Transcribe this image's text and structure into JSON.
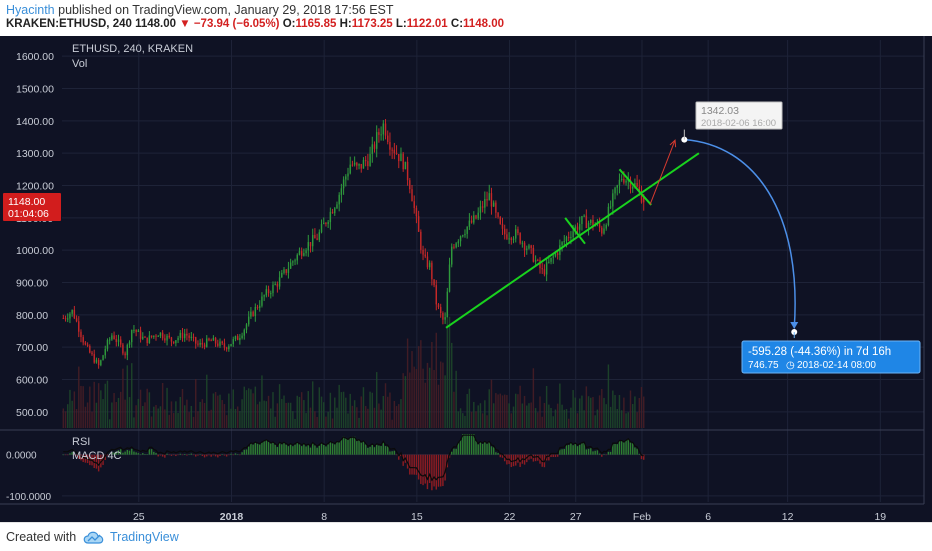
{
  "header": {
    "author": "Hyacinth",
    "published_text": "published on TradingView.com, January 29, 2018 17:56 EST",
    "symbol": "KRAKEN:ETHUSD, 240",
    "last": "1148.00",
    "change": "−73.94 (−6.05%)",
    "o_label": "O:",
    "o_val": "1165.85",
    "h_label": "H:",
    "h_val": "1173.25",
    "l_label": "L:",
    "l_val": "1122.01",
    "c_label": "C:",
    "c_val": "1148.00"
  },
  "legend": {
    "main": "ETHUSD, 240, KRAKEN",
    "vol": "Vol",
    "rsi": "RSI",
    "macd": "MACD 4C"
  },
  "price_tag": {
    "price": "1148.00",
    "countdown": "01:04:06"
  },
  "annotations": {
    "target_label": {
      "value": "1342.03",
      "date": "2018-02-06 16:00"
    },
    "measure": {
      "line1": "-595.28 (-44.36%) in 7d 16h",
      "line2_value": "746.75",
      "line2_date": "2018-02-14  08:00"
    }
  },
  "footer": {
    "created": "Created with",
    "brand": "TradingView"
  },
  "chart_data": {
    "type": "candlestick",
    "interval": "240",
    "y_ticks": [
      "500.00",
      "600.00",
      "700.00",
      "800.00",
      "900.00",
      "1000.00",
      "1100.00",
      "1200.00",
      "1300.00",
      "1400.00",
      "1500.00",
      "1600.00"
    ],
    "ylim": [
      450,
      1650
    ],
    "x_ticks": [
      "25",
      "2018",
      "8",
      "15",
      "22",
      "27",
      "Feb",
      "6",
      "12",
      "19"
    ],
    "x_tick_days": [
      25,
      32,
      39,
      46,
      53,
      58,
      63,
      68,
      74,
      81
    ],
    "xlim": [
      19.2,
      84.3
    ],
    "osc_ticks": [
      "0.0000",
      "-100.0000"
    ],
    "osc_ylim": [
      -115,
      55
    ],
    "anchors": [
      [
        19.3,
        790
      ],
      [
        20,
        812
      ],
      [
        21,
        700
      ],
      [
        22,
        640
      ],
      [
        22.5,
        700
      ],
      [
        23,
        740
      ],
      [
        24,
        680
      ],
      [
        24.5,
        760
      ],
      [
        25.5,
        720
      ],
      [
        26.5,
        745
      ],
      [
        27.5,
        720
      ],
      [
        28.5,
        742
      ],
      [
        29.5,
        705
      ],
      [
        30.5,
        720
      ],
      [
        31.5,
        700
      ],
      [
        32.5,
        730
      ],
      [
        33,
        760
      ],
      [
        33.5,
        800
      ],
      [
        34.5,
        860
      ],
      [
        35.5,
        900
      ],
      [
        36.5,
        960
      ],
      [
        37.5,
        1010
      ],
      [
        38.5,
        1040
      ],
      [
        39.5,
        1120
      ],
      [
        40,
        1160
      ],
      [
        41,
        1270
      ],
      [
        41.5,
        1250
      ],
      [
        42.5,
        1290
      ],
      [
        43,
        1350
      ],
      [
        43.5,
        1390
      ],
      [
        44,
        1330
      ],
      [
        44.5,
        1300
      ],
      [
        45,
        1270
      ],
      [
        45.5,
        1200
      ],
      [
        46,
        1080
      ],
      [
        46.5,
        970
      ],
      [
        47,
        950
      ],
      [
        47.5,
        830
      ],
      [
        48.1,
        770
      ],
      [
        48.6,
        1010
      ],
      [
        49.5,
        1060
      ],
      [
        50.5,
        1100
      ],
      [
        51,
        1140
      ],
      [
        51.5,
        1170
      ],
      [
        52,
        1100
      ],
      [
        52.5,
        1050
      ],
      [
        53.5,
        1050
      ],
      [
        54.5,
        1000
      ],
      [
        55.5,
        930
      ],
      [
        56.5,
        990
      ],
      [
        57.5,
        1050
      ],
      [
        58.5,
        1090
      ],
      [
        59.5,
        1080
      ],
      [
        60,
        1060
      ],
      [
        60.5,
        1120
      ],
      [
        61,
        1180
      ],
      [
        61.5,
        1230
      ],
      [
        62.5,
        1200
      ],
      [
        63.2,
        1150
      ]
    ],
    "ohlc_readout": {
      "open": 1165.85,
      "high": 1173.25,
      "low": 1122.01,
      "close": 1148.0
    }
  },
  "drawings": {
    "trend_line": {
      "from": [
        48.2,
        760
      ],
      "to": [
        67.3,
        1300
      ],
      "color": "#19d21e"
    },
    "wedge_small": {
      "from": [
        57.2,
        1100
      ],
      "to": [
        58.7,
        1020
      ],
      "color": "#19d21e"
    },
    "wedge_top": {
      "from": [
        61.3,
        1250
      ],
      "to": [
        63.7,
        1140
      ],
      "color": "#19d21e"
    },
    "red_arrow": {
      "from": [
        63.6,
        1140
      ],
      "to": [
        65.5,
        1340
      ],
      "color": "#d63a2f"
    },
    "target_point": {
      "x": 66.2,
      "y": 1342.03
    },
    "end_point": {
      "x": 74.5,
      "y": 746.75
    },
    "colors": {
      "up": "#2f9a3c",
      "down": "#c62828",
      "curve": "#4c8fe8",
      "bg": "#0f1224"
    }
  }
}
